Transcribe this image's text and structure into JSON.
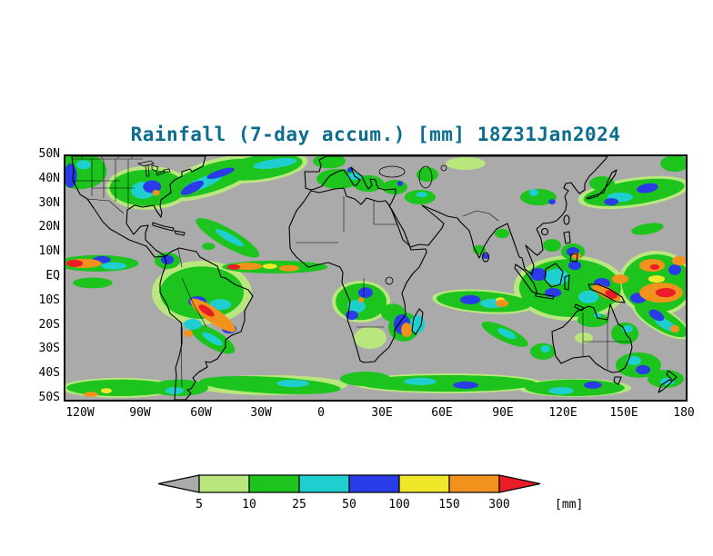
{
  "title": {
    "text": "Rainfall (7-day accum.) [mm] 18Z31Jan2024",
    "color": "#0c6e8e"
  },
  "map": {
    "background_color": "#aaaaaa",
    "coastline_color": "#000000",
    "yaxis_ticks": [
      "50N",
      "40N",
      "30N",
      "20N",
      "10N",
      "EQ",
      "10S",
      "20S",
      "30S",
      "40S",
      "50S"
    ],
    "xaxis_ticks": [
      "120W",
      "90W",
      "60W",
      "30W",
      "0",
      "30E",
      "60E",
      "90E",
      "120E",
      "150E",
      "180"
    ]
  },
  "colorbar": {
    "tick_labels": [
      "5",
      "10",
      "25",
      "50",
      "100",
      "150",
      "300"
    ],
    "unit_label": "[mm]",
    "below_min_color": "#aaaaaa",
    "above_max_color": "#ea1c25",
    "segment_colors": [
      "#b9e77e",
      "#1dc41d",
      "#1fcfcf",
      "#2a3ce8",
      "#f0e72a",
      "#f2921d"
    ]
  },
  "chart_data": {
    "type": "heatmap",
    "title": "Rainfall (7-day accum.) [mm] 18Z31Jan2024",
    "variable": "7-day accumulated rainfall",
    "unit": "mm",
    "valid_label": "18Z31Jan2024",
    "lon_range": [
      -128,
      180
    ],
    "lat_range": [
      -50,
      50
    ],
    "lon_ticks": [
      -120,
      -90,
      -60,
      -30,
      0,
      30,
      60,
      90,
      120,
      150,
      180
    ],
    "lat_ticks": [
      50,
      40,
      30,
      20,
      10,
      0,
      -10,
      -20,
      -30,
      -40,
      -50
    ],
    "levels_mm": [
      5,
      10,
      25,
      50,
      100,
      150,
      300
    ],
    "level_labels": [
      "5-10",
      "10-25",
      "25-50",
      "50-100",
      "100-150",
      "150-300",
      ">300"
    ],
    "level_colors": [
      "#b9e77e",
      "#1dc41d",
      "#1fcfcf",
      "#2a3ce8",
      "#f0e72a",
      "#f2921d",
      "#ea1c25"
    ],
    "background_below_5_color": "#aaaaaa",
    "rain_cells_format": [
      "lon",
      "lat",
      "radius_lon_deg",
      "radius_lat_deg",
      "rotate_deg",
      "level_index"
    ],
    "rain_cells": [
      [
        -121,
        44,
        13.5,
        7.5,
        0,
        1
      ],
      [
        -125.5,
        42,
        3.2,
        5,
        0,
        3
      ],
      [
        -119,
        46.5,
        3.6,
        1.9,
        0,
        2
      ],
      [
        -87,
        37,
        21,
        9,
        0,
        0
      ],
      [
        -87,
        37,
        19,
        7.5,
        0,
        1
      ],
      [
        -89.5,
        36,
        6,
        3.5,
        0,
        2
      ],
      [
        -85,
        37.5,
        4.5,
        2.6,
        0,
        3
      ],
      [
        -83,
        35,
        1.8,
        1.2,
        0,
        5
      ],
      [
        -56,
        41,
        26,
        7.1,
        -18,
        0
      ],
      [
        -56,
        41,
        23,
        5.6,
        -18,
        1
      ],
      [
        -60,
        39,
        10.8,
        2.2,
        -22,
        2
      ],
      [
        -65,
        37,
        6.3,
        1.9,
        -28,
        3
      ],
      [
        -51,
        43,
        7.2,
        1.5,
        -18,
        3
      ],
      [
        -31,
        45.5,
        23.5,
        6,
        -8,
        0
      ],
      [
        -31,
        45.5,
        20.8,
        4.9,
        -8,
        1
      ],
      [
        -24,
        47,
        10.8,
        1.9,
        -8,
        2
      ],
      [
        -47.5,
        16.5,
        18,
        3.7,
        30,
        1
      ],
      [
        -46.5,
        16.5,
        8.1,
        1.5,
        30,
        2
      ],
      [
        -24,
        4.5,
        26.2,
        2.6,
        0,
        1
      ],
      [
        -37.5,
        4.8,
        7.2,
        1.5,
        0,
        5
      ],
      [
        -44.5,
        4.5,
        3.2,
        1.1,
        0,
        6
      ],
      [
        -17,
        4,
        5,
        1.3,
        0,
        5
      ],
      [
        -26.5,
        4.8,
        3.6,
        1.1,
        0,
        4
      ],
      [
        -57,
        13,
        3.2,
        1.5,
        0,
        1
      ],
      [
        -112,
        6,
        20.3,
        3.4,
        0,
        1
      ],
      [
        -119,
        6,
        9,
        1.9,
        0,
        5
      ],
      [
        -123.5,
        6,
        4.1,
        1.5,
        0,
        6
      ],
      [
        -110,
        7.5,
        4.5,
        1.5,
        0,
        3
      ],
      [
        -104,
        5,
        6.3,
        1.5,
        0,
        2
      ],
      [
        -114.5,
        -2,
        9.9,
        2.2,
        0,
        1
      ],
      [
        -60.3,
        -6,
        24.8,
        13.1,
        0,
        0
      ],
      [
        -60.3,
        -6,
        20.8,
        10.8,
        0,
        1
      ],
      [
        -77.4,
        7.1,
        6.3,
        3.4,
        0,
        1
      ],
      [
        -77.4,
        7.5,
        3.2,
        1.9,
        0,
        3
      ],
      [
        -54.8,
        -15.3,
        13.5,
        3,
        35,
        5
      ],
      [
        -58,
        -13.4,
        4.5,
        1.5,
        35,
        6
      ],
      [
        -49,
        -19,
        5.4,
        1.9,
        35,
        5
      ],
      [
        -54.8,
        -14.2,
        3.6,
        1.5,
        35,
        4
      ],
      [
        -62.5,
        -9.7,
        4.5,
        2.2,
        0,
        3
      ],
      [
        -51.2,
        -10.9,
        5.4,
        2.2,
        0,
        2
      ],
      [
        -46.7,
        -20.9,
        3.6,
        1.9,
        0,
        3
      ],
      [
        -64.8,
        -19,
        4.5,
        2.2,
        0,
        2
      ],
      [
        -67,
        -22.8,
        2.3,
        1.5,
        0,
        5
      ],
      [
        -55,
        -25,
        12.6,
        3.7,
        30,
        1
      ],
      [
        -55,
        -25,
        5.9,
        1.5,
        30,
        2
      ],
      [
        -71.6,
        -45.1,
        14.5,
        3.4,
        0,
        1
      ],
      [
        -73.8,
        -46.3,
        4.5,
        1.5,
        0,
        2
      ],
      [
        -26.4,
        -44,
        38.4,
        4.1,
        0,
        0
      ],
      [
        -26.4,
        -44,
        35.2,
        3.4,
        3,
        1
      ],
      [
        -15,
        -43.3,
        8.1,
        1.5,
        0,
        2
      ],
      [
        -100.9,
        -45.1,
        29.4,
        4.1,
        0,
        0
      ],
      [
        -100.9,
        -45.1,
        26.6,
        3.4,
        0,
        1
      ],
      [
        -115.4,
        -47.8,
        3.6,
        1.1,
        0,
        5
      ],
      [
        -107.7,
        -46.3,
        2.7,
        1.1,
        0,
        4
      ],
      [
        18.8,
        -9.7,
        14.5,
        8.6,
        0,
        0
      ],
      [
        18.8,
        -9.7,
        12.6,
        7.5,
        0,
        1
      ],
      [
        16.5,
        -11.6,
        4.5,
        2.6,
        0,
        2
      ],
      [
        21,
        -6,
        3.6,
        2.2,
        0,
        3
      ],
      [
        14.2,
        -15.3,
        3.2,
        1.9,
        0,
        3
      ],
      [
        18.8,
        -9,
        1.4,
        1.1,
        0,
        5
      ],
      [
        34.6,
        -14.2,
        5.9,
        3.7,
        0,
        1
      ],
      [
        23.3,
        -24.6,
        8.1,
        4.5,
        0,
        0
      ],
      [
        40,
        -20.1,
        7.7,
        6,
        0,
        1
      ],
      [
        39.1,
        -19,
        4.1,
        4.1,
        0,
        3
      ],
      [
        41.4,
        -21.3,
        2.7,
        3,
        0,
        5
      ],
      [
        46.8,
        -19,
        3.6,
        3.7,
        0,
        2
      ],
      [
        21,
        -41.4,
        12.6,
        3,
        0,
        1
      ],
      [
        7.5,
        40.7,
        10.8,
        4.1,
        0,
        1
      ],
      [
        3,
        48,
        8.1,
        3,
        0,
        1
      ],
      [
        22.4,
        38.8,
        7.7,
        3.4,
        0,
        1
      ],
      [
        15.6,
        41.8,
        3.6,
        1.5,
        0,
        2
      ],
      [
        13.3,
        44.4,
        1.4,
        1.1,
        0,
        3
      ],
      [
        35.5,
        37.3,
        6.3,
        3,
        0,
        1
      ],
      [
        38.2,
        38.8,
        1.4,
        1.1,
        0,
        3
      ],
      [
        48.1,
        33.2,
        7.7,
        3,
        0,
        1
      ],
      [
        49,
        34.3,
        2.7,
        1.1,
        0,
        2
      ],
      [
        51.7,
        42.5,
        5.4,
        3,
        0,
        1
      ],
      [
        70.7,
        47,
        9.9,
        2.6,
        0,
        0
      ],
      [
        77.5,
        11.6,
        3.2,
        1.9,
        0,
        1
      ],
      [
        80.6,
        8.9,
        1.8,
        1.1,
        0,
        3
      ],
      [
        88.8,
        18.3,
        3.6,
        1.9,
        0,
        1
      ],
      [
        106.8,
        33.2,
        9,
        3.4,
        0,
        1
      ],
      [
        104.6,
        35.1,
        2.3,
        1.5,
        0,
        2
      ],
      [
        113.6,
        31.3,
        1.8,
        1.1,
        0,
        3
      ],
      [
        113.6,
        13.4,
        4.5,
        2.6,
        0,
        1
      ],
      [
        79.7,
        -9.7,
        25.7,
        4.9,
        4,
        0
      ],
      [
        79.7,
        -9.7,
        23.5,
        4.1,
        4,
        1
      ],
      [
        73,
        -8.9,
        5,
        1.9,
        0,
        3
      ],
      [
        84.2,
        -10.4,
        6.3,
        1.9,
        0,
        2
      ],
      [
        88.8,
        -10.4,
        3.2,
        1.5,
        0,
        5
      ],
      [
        87.9,
        -9,
        2.3,
        1.1,
        0,
        4
      ],
      [
        90.2,
        -23.1,
        12.6,
        3,
        25,
        1
      ],
      [
        91.1,
        -22.8,
        5,
        1.5,
        25,
        2
      ],
      [
        61.7,
        -43.3,
        47.4,
        4.1,
        0,
        0
      ],
      [
        61.7,
        -43.3,
        44.3,
        3.4,
        0,
        1
      ],
      [
        48.1,
        -42.5,
        8.1,
        1.5,
        0,
        2
      ],
      [
        70.7,
        -44,
        6.3,
        1.5,
        0,
        3
      ],
      [
        122.6,
        -4.1,
        28,
        13.4,
        0,
        0
      ],
      [
        122.6,
        -4.1,
        25.3,
        11.9,
        0,
        1
      ],
      [
        106.8,
        1.5,
        4.1,
        2.6,
        0,
        3
      ],
      [
        114.1,
        -6,
        4.1,
        1.9,
        0,
        3
      ],
      [
        124.9,
        5.2,
        3.2,
        1.9,
        0,
        3
      ],
      [
        138.4,
        -2.2,
        4.1,
        2.2,
        0,
        3
      ],
      [
        115.9,
        0.4,
        5.9,
        3.4,
        0,
        2
      ],
      [
        131.7,
        -7.8,
        5,
        2.6,
        0,
        2
      ],
      [
        140.7,
        -6,
        7.7,
        2.2,
        25,
        5
      ],
      [
        143,
        -6.7,
        3.2,
        1.5,
        25,
        6
      ],
      [
        147.5,
        -0.4,
        4.1,
        1.9,
        0,
        5
      ],
      [
        124,
        10.8,
        5.9,
        3.4,
        0,
        1
      ],
      [
        124,
        10.8,
        3.2,
        1.9,
        0,
        3
      ],
      [
        125.8,
        9,
        2.3,
        1.5,
        0,
        5
      ],
      [
        165.5,
        -2.2,
        19,
        13.4,
        0,
        0
      ],
      [
        165.5,
        -2.2,
        17.2,
        11.9,
        0,
        1
      ],
      [
        167.8,
        -6,
        10.8,
        4.1,
        0,
        5
      ],
      [
        170,
        -6,
        5,
        1.9,
        0,
        6
      ],
      [
        163.3,
        5.2,
        6.3,
        2.6,
        0,
        5
      ],
      [
        164.6,
        4.5,
        2.3,
        1.1,
        0,
        6
      ],
      [
        156.5,
        -8.2,
        4.1,
        2.2,
        0,
        3
      ],
      [
        174.6,
        3.4,
        3.2,
        2.2,
        0,
        3
      ],
      [
        165.5,
        -0.4,
        4.1,
        1.5,
        0,
        4
      ],
      [
        176.8,
        7.1,
        3.6,
        1.9,
        0,
        5
      ],
      [
        167.8,
        -17.2,
        16.3,
        4.9,
        30,
        0
      ],
      [
        167.8,
        -17.2,
        14.9,
        4.1,
        30,
        1
      ],
      [
        170,
        -19,
        6.3,
        1.9,
        30,
        2
      ],
      [
        165.5,
        -15.3,
        4.1,
        1.9,
        30,
        3
      ],
      [
        174.6,
        -20.9,
        2.3,
        1.5,
        0,
        5
      ],
      [
        154.3,
        35.1,
        28,
        6,
        -8,
        0
      ],
      [
        154.3,
        35.1,
        25.3,
        4.9,
        -8,
        1
      ],
      [
        147.5,
        33.2,
        6.3,
        1.9,
        0,
        2
      ],
      [
        161,
        36.9,
        5.4,
        1.9,
        -10,
        3
      ],
      [
        143,
        31.3,
        3.6,
        1.5,
        0,
        3
      ],
      [
        138.4,
        38.8,
        6.3,
        3,
        0,
        1
      ],
      [
        174.6,
        47,
        7.2,
        3.4,
        0,
        1
      ],
      [
        161,
        20.2,
        8.1,
        2.2,
        -10,
        1
      ],
      [
        133.9,
        -17.2,
        7.7,
        3,
        0,
        1
      ],
      [
        136.2,
        -15.3,
        1.8,
        1.1,
        0,
        2
      ],
      [
        149.8,
        -22.8,
        6.8,
        4.5,
        0,
        1
      ],
      [
        151.1,
        -20.9,
        2.7,
        1.5,
        0,
        2
      ],
      [
        129.4,
        -24.6,
        4.5,
        2.2,
        0,
        0
      ],
      [
        156.5,
        -35.8,
        11.3,
        5.2,
        0,
        1
      ],
      [
        158.8,
        -37.7,
        3.6,
        1.9,
        0,
        3
      ],
      [
        154.3,
        -33.9,
        3.6,
        1.9,
        0,
        2
      ],
      [
        170,
        -41.4,
        9,
        3.7,
        0,
        1
      ],
      [
        170.9,
        -42.5,
        3.6,
        1.5,
        0,
        2
      ],
      [
        124.9,
        -45.1,
        28,
        3.7,
        0,
        0
      ],
      [
        124.9,
        -45.1,
        24.8,
        3.4,
        0,
        1
      ],
      [
        118.1,
        -46.3,
        6.3,
        1.5,
        0,
        2
      ],
      [
        133.9,
        -44,
        4.5,
        1.5,
        0,
        3
      ],
      [
        109.1,
        -30.2,
        6.3,
        3.4,
        0,
        1
      ],
      [
        110.4,
        -29.1,
        2.3,
        1.5,
        0,
        2
      ]
    ]
  }
}
